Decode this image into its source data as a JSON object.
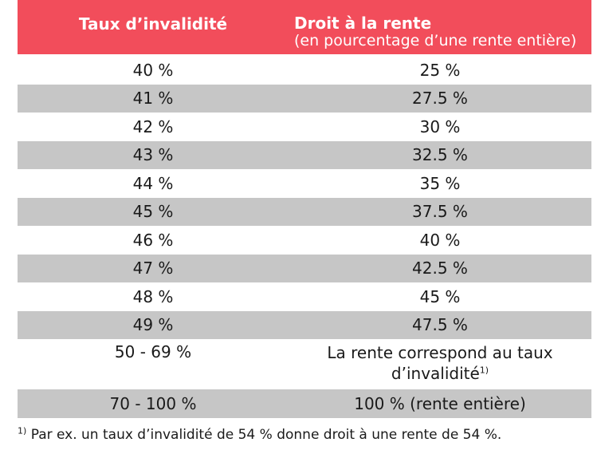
{
  "header": {
    "col1": "Taux d’invalidité",
    "col2_title": "Droit à la rente",
    "col2_sub": "(en pourcentage d’une rente entière)"
  },
  "rows": [
    {
      "taux": "40 %",
      "droit": "25 %"
    },
    {
      "taux": "41 %",
      "droit": "27.5 %"
    },
    {
      "taux": "42 %",
      "droit": "30 %"
    },
    {
      "taux": "43 %",
      "droit": "32.5 %"
    },
    {
      "taux": "44 %",
      "droit": "35 %"
    },
    {
      "taux": "45 %",
      "droit": "37.5 %"
    },
    {
      "taux": "46 %",
      "droit": "40 %"
    },
    {
      "taux": "47 %",
      "droit": "42.5 %"
    },
    {
      "taux": "48 %",
      "droit": "45 %"
    },
    {
      "taux": "49 %",
      "droit": "47.5 %"
    }
  ],
  "row_50_69": {
    "taux": "50 - 69 %",
    "droit_line1": "La rente correspond au taux",
    "droit_line2": "d’invalidité",
    "droit_sup": "1)"
  },
  "row_70_100": {
    "taux": "70 - 100 %",
    "droit": "100 % (rente entière)"
  },
  "footnote": {
    "marker": "1)",
    "text": " Par ex. un taux d’invalidité de 54 % donne droit à une rente de 54 %."
  },
  "colors": {
    "header_bg": "#f24d5b",
    "shaded_row": "#c6c6c6"
  }
}
